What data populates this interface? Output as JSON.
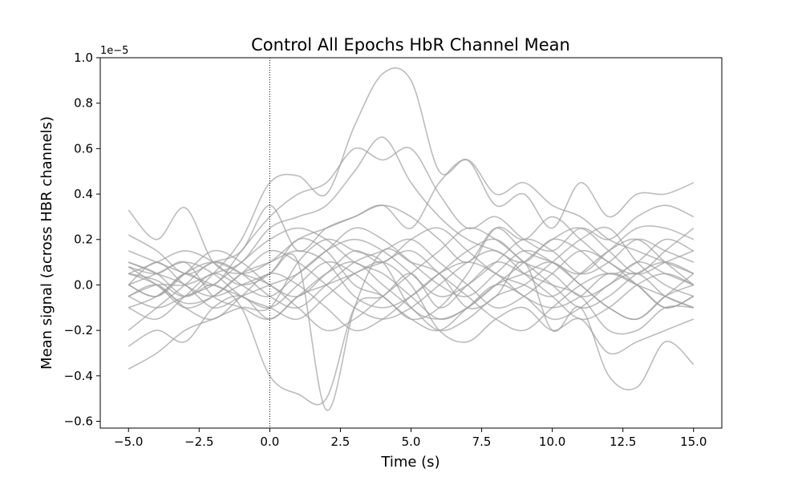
{
  "chart_data": {
    "type": "line",
    "title": "Control All Epochs HbR Channel Mean",
    "xlabel": "Time (s)",
    "ylabel": "Mean signal (across HBR channels)",
    "y_offset_text": "1e−5",
    "xlim": [
      -6.0,
      16.0
    ],
    "ylim": [
      -0.63,
      1.0
    ],
    "x_ticks": [
      -5.0,
      -2.5,
      0.0,
      2.5,
      5.0,
      7.5,
      10.0,
      12.5,
      15.0
    ],
    "x_tick_labels": [
      "−5.0",
      "−2.5",
      "0.0",
      "2.5",
      "5.0",
      "7.5",
      "10.0",
      "12.5",
      "15.0"
    ],
    "y_ticks": [
      -0.6,
      -0.4,
      -0.2,
      0.0,
      0.2,
      0.4,
      0.6,
      0.8,
      1.0
    ],
    "y_tick_labels": [
      "−0.6",
      "−0.4",
      "−0.2",
      "0.0",
      "0.2",
      "0.4",
      "0.6",
      "0.8",
      "1.0"
    ],
    "vline_x": 0.0,
    "line_color": "#a0a0a0",
    "vline_color": "#000000",
    "grid": false,
    "x": [
      -5,
      -4,
      -3,
      -2,
      -1,
      0,
      1,
      2,
      3,
      4,
      5,
      6,
      7,
      8,
      9,
      10,
      11,
      12,
      13,
      14,
      15
    ],
    "series": [
      {
        "values": [
          0.05,
          0.02,
          -0.05,
          0.05,
          0.2,
          0.45,
          0.48,
          0.4,
          0.7,
          0.93,
          0.9,
          0.5,
          0.55,
          0.35,
          0.4,
          0.25,
          0.45,
          0.3,
          0.4,
          0.4,
          0.45
        ]
      },
      {
        "values": [
          0.0,
          -0.05,
          0.05,
          0.0,
          0.15,
          0.3,
          0.4,
          0.45,
          0.6,
          0.55,
          0.6,
          0.4,
          0.25,
          0.3,
          0.2,
          0.15,
          0.25,
          0.2,
          0.3,
          0.35,
          0.3
        ]
      },
      {
        "values": [
          -0.05,
          0.0,
          0.0,
          0.05,
          0.1,
          0.25,
          0.3,
          0.35,
          0.5,
          0.65,
          0.45,
          0.3,
          0.2,
          0.15,
          0.1,
          0.2,
          0.15,
          0.05,
          0.1,
          0.2,
          0.15
        ]
      },
      {
        "values": [
          0.1,
          0.05,
          -0.05,
          0.0,
          -0.1,
          -0.4,
          -0.48,
          -0.5,
          -0.1,
          -0.05,
          0.05,
          -0.1,
          0.0,
          0.1,
          0.05,
          0.0,
          -0.05,
          -0.2,
          -0.2,
          -0.1,
          -0.1
        ]
      },
      {
        "values": [
          0.0,
          0.1,
          0.0,
          -0.05,
          0.0,
          0.05,
          0.1,
          -0.55,
          -0.1,
          0.15,
          0.1,
          0.05,
          -0.1,
          -0.05,
          0.1,
          -0.2,
          -0.1,
          -0.4,
          -0.45,
          -0.25,
          -0.35
        ]
      },
      {
        "values": [
          0.33,
          0.2,
          0.34,
          0.1,
          0.05,
          0.1,
          0.2,
          0.25,
          0.3,
          0.35,
          0.25,
          0.45,
          0.55,
          0.4,
          0.45,
          0.35,
          0.3,
          0.2,
          0.15,
          0.1,
          0.05
        ]
      },
      {
        "values": [
          0.22,
          0.15,
          0.05,
          0.1,
          0.15,
          0.35,
          0.15,
          0.25,
          0.3,
          0.35,
          0.3,
          0.2,
          0.1,
          0.25,
          0.15,
          0.1,
          0.05,
          0.15,
          0.25,
          0.25,
          0.2
        ]
      },
      {
        "values": [
          -0.27,
          -0.2,
          -0.25,
          -0.1,
          -0.05,
          -0.15,
          -0.05,
          0.0,
          0.05,
          0.1,
          0.0,
          -0.2,
          -0.25,
          -0.15,
          -0.1,
          -0.2,
          -0.15,
          -0.3,
          -0.25,
          -0.2,
          -0.15
        ]
      },
      {
        "values": [
          -0.37,
          -0.3,
          -0.2,
          -0.15,
          -0.1,
          -0.1,
          0.1,
          0.2,
          0.15,
          0.1,
          -0.1,
          -0.15,
          -0.1,
          0.0,
          0.05,
          0.1,
          0.0,
          -0.1,
          -0.15,
          -0.05,
          0.0
        ]
      },
      {
        "values": [
          0.08,
          0.05,
          0.1,
          -0.05,
          -0.1,
          -0.15,
          -0.05,
          0.05,
          0.1,
          0.0,
          -0.1,
          -0.2,
          -0.15,
          -0.05,
          0.0,
          0.1,
          0.2,
          0.25,
          0.1,
          0.0,
          -0.05
        ]
      },
      {
        "values": [
          -0.1,
          -0.15,
          -0.05,
          0.05,
          0.0,
          0.05,
          0.2,
          0.15,
          0.0,
          -0.05,
          -0.15,
          -0.1,
          0.05,
          0.25,
          0.2,
          0.3,
          0.2,
          0.1,
          0.05,
          0.15,
          0.25
        ]
      },
      {
        "values": [
          0.05,
          0.0,
          -0.1,
          -0.05,
          0.05,
          0.1,
          0.15,
          0.1,
          -0.05,
          -0.1,
          -0.05,
          0.05,
          0.15,
          0.2,
          0.1,
          0.05,
          -0.05,
          0.0,
          0.1,
          0.05,
          0.0
        ]
      },
      {
        "values": [
          -0.2,
          -0.1,
          0.0,
          0.1,
          0.05,
          -0.05,
          -0.1,
          0.0,
          0.1,
          0.15,
          0.2,
          0.1,
          0.0,
          -0.1,
          -0.05,
          0.05,
          0.15,
          0.1,
          0.0,
          -0.1,
          -0.05
        ]
      },
      {
        "values": [
          0.1,
          0.05,
          0.0,
          -0.1,
          -0.05,
          0.0,
          0.05,
          0.15,
          0.25,
          0.2,
          0.1,
          0.0,
          -0.05,
          0.05,
          0.15,
          0.1,
          0.0,
          -0.1,
          -0.15,
          -0.05,
          0.05
        ]
      },
      {
        "values": [
          0.0,
          0.05,
          0.1,
          0.05,
          -0.05,
          -0.1,
          -0.15,
          -0.05,
          0.05,
          0.1,
          0.15,
          0.05,
          -0.05,
          -0.15,
          -0.2,
          -0.1,
          0.0,
          0.05,
          0.0,
          -0.05,
          -0.1
        ]
      },
      {
        "values": [
          -0.05,
          -0.1,
          -0.05,
          0.0,
          0.1,
          0.2,
          0.25,
          0.2,
          0.1,
          0.05,
          -0.05,
          -0.15,
          -0.1,
          0.0,
          0.1,
          0.2,
          0.25,
          0.15,
          0.05,
          0.1,
          0.15
        ]
      },
      {
        "values": [
          0.15,
          0.1,
          0.05,
          0.0,
          -0.05,
          -0.1,
          0.0,
          0.1,
          0.05,
          -0.05,
          -0.15,
          -0.2,
          -0.1,
          0.0,
          -0.05,
          -0.15,
          -0.1,
          0.0,
          0.05,
          -0.05,
          -0.1
        ]
      },
      {
        "values": [
          -0.1,
          -0.05,
          0.05,
          0.1,
          0.05,
          0.0,
          -0.1,
          -0.2,
          -0.15,
          -0.05,
          0.05,
          0.15,
          0.25,
          0.2,
          0.1,
          0.0,
          -0.1,
          -0.05,
          0.05,
          0.1,
          0.05
        ]
      },
      {
        "values": [
          0.05,
          0.1,
          0.15,
          0.1,
          0.0,
          -0.05,
          0.05,
          0.15,
          0.2,
          0.15,
          0.05,
          -0.05,
          0.0,
          0.1,
          0.2,
          0.15,
          0.05,
          0.1,
          0.2,
          0.15,
          0.1
        ]
      },
      {
        "values": [
          -0.05,
          0.0,
          -0.1,
          -0.15,
          -0.05,
          0.05,
          0.0,
          -0.1,
          -0.2,
          -0.15,
          -0.05,
          0.05,
          0.1,
          0.05,
          -0.05,
          -0.1,
          -0.05,
          0.05,
          0.0,
          -0.1,
          -0.05
        ]
      },
      {
        "values": [
          0.0,
          -0.05,
          0.05,
          0.15,
          0.1,
          0.0,
          -0.05,
          0.05,
          0.15,
          0.1,
          0.2,
          0.25,
          0.15,
          0.05,
          0.0,
          -0.05,
          0.05,
          0.15,
          0.2,
          0.1,
          0.0
        ]
      },
      {
        "values": [
          0.08,
          0.0,
          -0.08,
          -0.05,
          0.05,
          0.15,
          0.1,
          0.0,
          -0.1,
          -0.15,
          -0.1,
          0.0,
          0.1,
          0.15,
          0.05,
          -0.05,
          -0.15,
          -0.1,
          0.0,
          0.05,
          0.0
        ]
      }
    ]
  }
}
